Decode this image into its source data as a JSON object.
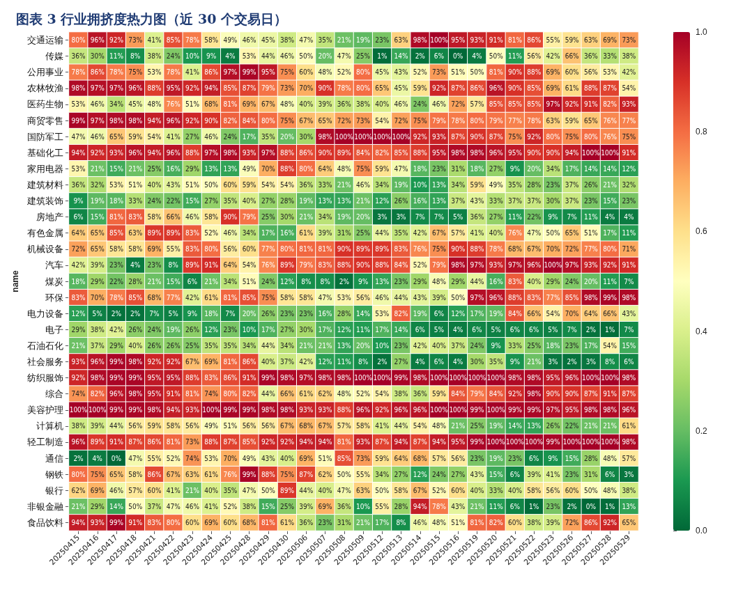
{
  "chart_data": {
    "type": "heatmap",
    "title": "图表 3 行业拥挤度热力图（近 30 个交易日）",
    "ylabel": "name",
    "categories": [
      "20250415",
      "20250416",
      "20250417",
      "20250418",
      "20250421",
      "20250422",
      "20250423",
      "20250424",
      "20250425",
      "20250428",
      "20250429",
      "20250430",
      "20250506",
      "20250507",
      "20250508",
      "20250509",
      "20250512",
      "20250513",
      "20250514",
      "20250515",
      "20250516",
      "20250519",
      "20250520",
      "20250521",
      "20250522",
      "20250523",
      "20250526",
      "20250527",
      "20250528",
      "20250529"
    ],
    "y_categories": [
      "交通运输",
      "传媒",
      "公用事业",
      "农林牧渔",
      "医药生物",
      "商贸零售",
      "国防军工",
      "基础化工",
      "家用电器",
      "建筑材料",
      "建筑装饰",
      "房地产",
      "有色金属",
      "机械设备",
      "汽车",
      "煤炭",
      "环保",
      "电力设备",
      "电子",
      "石油石化",
      "社会服务",
      "纺织服饰",
      "综合",
      "美容护理",
      "计算机",
      "轻工制造",
      "通信",
      "钢铁",
      "银行",
      "非银金融",
      "食品饮料"
    ],
    "cells": [
      [
        0.8,
        0.96,
        0.92,
        0.73,
        0.41,
        0.85,
        0.78,
        0.58,
        0.49,
        0.46,
        0.45,
        0.38,
        0.47,
        0.35,
        0.21,
        0.19,
        0.23,
        0.63,
        0.98,
        1.0,
        0.95,
        0.93,
        0.91,
        0.81,
        0.86,
        0.55,
        0.59,
        0.63,
        0.69,
        0.73
      ],
      [
        0.36,
        0.3,
        0.11,
        0.08,
        0.38,
        0.24,
        0.1,
        0.09,
        0.04,
        0.53,
        0.44,
        0.46,
        0.5,
        0.2,
        0.47,
        0.25,
        0.01,
        0.14,
        0.02,
        0.06,
        0.0,
        0.04,
        0.5,
        0.11,
        0.56,
        0.42,
        0.66,
        0.36,
        0.33,
        0.38
      ],
      [
        0.78,
        0.86,
        0.78,
        0.75,
        0.53,
        0.78,
        0.41,
        0.86,
        0.97,
        0.99,
        0.95,
        0.75,
        0.6,
        0.48,
        0.52,
        0.8,
        0.45,
        0.43,
        0.52,
        0.73,
        0.51,
        0.5,
        0.81,
        0.9,
        0.88,
        0.69,
        0.6,
        0.56,
        0.53,
        0.42
      ],
      [
        0.98,
        0.97,
        0.97,
        0.96,
        0.88,
        0.95,
        0.92,
        0.94,
        0.85,
        0.87,
        0.79,
        0.73,
        0.7,
        0.9,
        0.78,
        0.8,
        0.65,
        0.45,
        0.59,
        0.92,
        0.87,
        0.86,
        0.96,
        0.9,
        0.85,
        0.69,
        0.61,
        0.88,
        0.87,
        0.54
      ],
      [
        0.53,
        0.46,
        0.34,
        0.45,
        0.48,
        0.76,
        0.51,
        0.68,
        0.81,
        0.69,
        0.67,
        0.48,
        0.4,
        0.39,
        0.36,
        0.38,
        0.4,
        0.46,
        0.24,
        0.46,
        0.72,
        0.57,
        0.85,
        0.85,
        0.85,
        0.97,
        0.92,
        0.91,
        0.82,
        0.93
      ],
      [
        0.99,
        0.97,
        0.98,
        0.98,
        0.94,
        0.96,
        0.92,
        0.9,
        0.82,
        0.84,
        0.8,
        0.75,
        0.67,
        0.65,
        0.72,
        0.73,
        0.54,
        0.72,
        0.75,
        0.79,
        0.78,
        0.8,
        0.79,
        0.77,
        0.78,
        0.63,
        0.59,
        0.65,
        0.76,
        0.77
      ],
      [
        0.47,
        0.46,
        0.65,
        0.59,
        0.54,
        0.41,
        0.27,
        0.46,
        0.24,
        0.17,
        0.35,
        0.2,
        0.3,
        0.98,
        1.0,
        1.0,
        1.0,
        1.0,
        0.92,
        0.93,
        0.87,
        0.9,
        0.87,
        0.75,
        0.92,
        0.8,
        0.75,
        0.8,
        0.76,
        0.75
      ],
      [
        0.94,
        0.92,
        0.93,
        0.96,
        0.94,
        0.96,
        0.88,
        0.97,
        0.98,
        0.93,
        0.97,
        0.88,
        0.86,
        0.9,
        0.89,
        0.84,
        0.82,
        0.85,
        0.88,
        0.95,
        0.98,
        0.98,
        0.96,
        0.95,
        0.9,
        0.9,
        0.94,
        1.0,
        1.0,
        0.91
      ],
      [
        0.53,
        0.21,
        0.15,
        0.21,
        0.25,
        0.16,
        0.29,
        0.13,
        0.13,
        0.49,
        0.7,
        0.88,
        0.8,
        0.64,
        0.48,
        0.75,
        0.59,
        0.47,
        0.18,
        0.23,
        0.31,
        0.18,
        0.27,
        0.09,
        0.2,
        0.34,
        0.17,
        0.14,
        0.14,
        0.12
      ],
      [
        0.36,
        0.32,
        0.53,
        0.51,
        0.4,
        0.43,
        0.51,
        0.5,
        0.6,
        0.59,
        0.54,
        0.54,
        0.36,
        0.33,
        0.21,
        0.46,
        0.34,
        0.19,
        0.1,
        0.13,
        0.34,
        0.59,
        0.49,
        0.35,
        0.28,
        0.23,
        0.37,
        0.26,
        0.21,
        0.32
      ],
      [
        0.09,
        0.19,
        0.18,
        0.33,
        0.24,
        0.22,
        0.15,
        0.27,
        0.35,
        0.4,
        0.27,
        0.28,
        0.19,
        0.13,
        0.13,
        0.21,
        0.12,
        0.26,
        0.16,
        0.13,
        0.37,
        0.43,
        0.33,
        0.37,
        0.37,
        0.3,
        0.37,
        0.23,
        0.15,
        0.23
      ],
      [
        0.06,
        0.15,
        0.81,
        0.83,
        0.58,
        0.66,
        0.46,
        0.58,
        0.9,
        0.79,
        0.25,
        0.3,
        0.21,
        0.34,
        0.19,
        0.2,
        0.03,
        0.03,
        0.07,
        0.07,
        0.05,
        0.36,
        0.27,
        0.11,
        0.22,
        0.09,
        0.07,
        0.11,
        0.04,
        0.04
      ],
      [
        0.64,
        0.65,
        0.85,
        0.63,
        0.89,
        0.89,
        0.83,
        0.52,
        0.46,
        0.34,
        0.17,
        0.16,
        0.61,
        0.39,
        0.31,
        0.25,
        0.44,
        0.35,
        0.42,
        0.67,
        0.57,
        0.41,
        0.4,
        0.76,
        0.47,
        0.5,
        0.65,
        0.51,
        0.17,
        0.11
      ],
      [
        0.72,
        0.65,
        0.58,
        0.58,
        0.69,
        0.55,
        0.83,
        0.8,
        0.56,
        0.6,
        0.77,
        0.8,
        0.81,
        0.81,
        0.9,
        0.89,
        0.89,
        0.83,
        0.76,
        0.75,
        0.9,
        0.88,
        0.78,
        0.68,
        0.67,
        0.7,
        0.72,
        0.77,
        0.8,
        0.71
      ],
      [
        0.42,
        0.39,
        0.23,
        0.04,
        0.23,
        0.08,
        0.89,
        0.91,
        0.64,
        0.54,
        0.76,
        0.89,
        0.79,
        0.83,
        0.88,
        0.9,
        0.88,
        0.84,
        0.52,
        0.79,
        0.98,
        0.97,
        0.93,
        0.97,
        0.96,
        1.0,
        0.97,
        0.93,
        0.92,
        0.91
      ],
      [
        0.18,
        0.29,
        0.22,
        0.28,
        0.21,
        0.15,
        0.06,
        0.21,
        0.34,
        0.51,
        0.24,
        0.12,
        0.08,
        0.08,
        0.02,
        0.09,
        0.13,
        0.23,
        0.29,
        0.48,
        0.29,
        0.44,
        0.16,
        0.83,
        0.4,
        0.29,
        0.24,
        0.2,
        0.11,
        0.07
      ],
      [
        0.83,
        0.7,
        0.78,
        0.85,
        0.68,
        0.77,
        0.42,
        0.61,
        0.81,
        0.85,
        0.75,
        0.58,
        0.58,
        0.47,
        0.53,
        0.56,
        0.46,
        0.44,
        0.43,
        0.39,
        0.5,
        0.97,
        0.96,
        0.88,
        0.83,
        0.77,
        0.85,
        0.98,
        0.99,
        0.98
      ],
      [
        0.12,
        0.05,
        0.02,
        0.02,
        0.07,
        0.05,
        0.09,
        0.18,
        0.07,
        0.2,
        0.26,
        0.23,
        0.23,
        0.16,
        0.28,
        0.14,
        0.53,
        0.82,
        0.19,
        0.06,
        0.12,
        0.17,
        0.19,
        0.84,
        0.66,
        0.54,
        0.7,
        0.64,
        0.66,
        0.43
      ],
      [
        0.29,
        0.38,
        0.42,
        0.26,
        0.24,
        0.19,
        0.26,
        0.12,
        0.23,
        0.1,
        0.17,
        0.27,
        0.3,
        0.17,
        0.12,
        0.11,
        0.17,
        0.14,
        0.06,
        0.05,
        0.04,
        0.06,
        0.05,
        0.06,
        0.06,
        0.05,
        0.07,
        0.02,
        0.01,
        0.07
      ],
      [
        0.21,
        0.37,
        0.29,
        0.4,
        0.26,
        0.26,
        0.25,
        0.35,
        0.35,
        0.34,
        0.44,
        0.34,
        0.21,
        0.21,
        0.13,
        0.2,
        0.1,
        0.23,
        0.42,
        0.4,
        0.37,
        0.24,
        0.09,
        0.33,
        0.25,
        0.18,
        0.23,
        0.17,
        0.54,
        0.15
      ],
      [
        0.93,
        0.96,
        0.99,
        0.98,
        0.92,
        0.92,
        0.67,
        0.69,
        0.81,
        0.86,
        0.4,
        0.37,
        0.42,
        0.12,
        0.11,
        0.08,
        0.02,
        0.27,
        0.04,
        0.06,
        0.04,
        0.3,
        0.35,
        0.09,
        0.21,
        0.03,
        0.02,
        0.03,
        0.08,
        0.06
      ],
      [
        0.92,
        0.98,
        0.99,
        0.99,
        0.95,
        0.95,
        0.88,
        0.83,
        0.86,
        0.91,
        0.99,
        0.98,
        0.97,
        0.98,
        0.98,
        1.0,
        1.0,
        0.99,
        0.98,
        1.0,
        1.0,
        1.0,
        1.0,
        0.98,
        0.98,
        0.95,
        0.96,
        1.0,
        1.0,
        0.98
      ],
      [
        0.74,
        0.82,
        0.96,
        0.98,
        0.95,
        0.91,
        0.81,
        0.74,
        0.8,
        0.82,
        0.44,
        0.66,
        0.61,
        0.62,
        0.48,
        0.52,
        0.54,
        0.38,
        0.36,
        0.59,
        0.84,
        0.79,
        0.84,
        0.92,
        0.98,
        0.9,
        0.9,
        0.87,
        0.91,
        0.87
      ],
      [
        1.0,
        1.0,
        0.99,
        0.99,
        0.98,
        0.94,
        0.93,
        1.0,
        0.99,
        0.99,
        0.98,
        0.98,
        0.93,
        0.93,
        0.88,
        0.96,
        0.92,
        0.96,
        0.96,
        1.0,
        1.0,
        0.99,
        1.0,
        0.99,
        0.99,
        0.97,
        0.95,
        0.98,
        0.98,
        0.96
      ],
      [
        0.38,
        0.39,
        0.44,
        0.56,
        0.59,
        0.58,
        0.56,
        0.49,
        0.51,
        0.56,
        0.56,
        0.67,
        0.68,
        0.67,
        0.57,
        0.58,
        0.41,
        0.44,
        0.54,
        0.48,
        0.21,
        0.25,
        0.19,
        0.14,
        0.13,
        0.26,
        0.22,
        0.21,
        0.21,
        0.61
      ],
      [
        0.96,
        0.89,
        0.91,
        0.87,
        0.86,
        0.81,
        0.73,
        0.88,
        0.87,
        0.85,
        0.92,
        0.92,
        0.94,
        0.94,
        0.81,
        0.93,
        0.87,
        0.94,
        0.87,
        0.94,
        0.95,
        0.99,
        1.0,
        1.0,
        1.0,
        0.99,
        1.0,
        1.0,
        1.0,
        0.98
      ],
      [
        0.02,
        0.04,
        0.0,
        0.47,
        0.55,
        0.52,
        0.74,
        0.53,
        0.7,
        0.49,
        0.43,
        0.4,
        0.69,
        0.51,
        0.85,
        0.73,
        0.59,
        0.64,
        0.68,
        0.57,
        0.56,
        0.23,
        0.19,
        0.23,
        0.06,
        0.09,
        0.15,
        0.28,
        0.48,
        0.57
      ],
      [
        0.8,
        0.75,
        0.65,
        0.58,
        0.86,
        0.67,
        0.63,
        0.61,
        0.76,
        0.99,
        0.88,
        0.75,
        0.87,
        0.62,
        0.5,
        0.55,
        0.34,
        0.27,
        0.12,
        0.24,
        0.27,
        0.43,
        0.15,
        0.06,
        0.39,
        0.41,
        0.23,
        0.31,
        0.06,
        0.03
      ],
      [
        0.62,
        0.69,
        0.46,
        0.57,
        0.6,
        0.41,
        0.21,
        0.4,
        0.35,
        0.47,
        0.5,
        0.89,
        0.44,
        0.4,
        0.47,
        0.63,
        0.5,
        0.58,
        0.67,
        0.52,
        0.6,
        0.4,
        0.33,
        0.4,
        0.58,
        0.56,
        0.6,
        0.5,
        0.48,
        0.38
      ],
      [
        0.21,
        0.29,
        0.14,
        0.5,
        0.37,
        0.47,
        0.46,
        0.41,
        0.52,
        0.38,
        0.15,
        0.25,
        0.39,
        0.69,
        0.36,
        0.1,
        0.55,
        0.28,
        0.94,
        0.78,
        0.43,
        0.21,
        0.11,
        0.06,
        0.01,
        0.23,
        0.02,
        0.0,
        0.01,
        0.13
      ],
      [
        0.94,
        0.93,
        0.99,
        0.91,
        0.83,
        0.8,
        0.6,
        0.69,
        0.6,
        0.68,
        0.81,
        0.61,
        0.36,
        0.23,
        0.31,
        0.21,
        0.17,
        0.08,
        0.46,
        0.48,
        0.51,
        0.81,
        0.82,
        0.6,
        0.38,
        0.39,
        0.72,
        0.86,
        0.92,
        0.65
      ]
    ],
    "cell_labels": [
      [
        "80%",
        "96%",
        "92%",
        "73%",
        "41%",
        "85%",
        "78%",
        "58%",
        "49%",
        "46%",
        "45%",
        "38%",
        "47%",
        "35%",
        "21%",
        "19%",
        "23%",
        "63%",
        "98%",
        "100%",
        "95%",
        "93%",
        "91%",
        "81%",
        "86%",
        "55%",
        "59%",
        "63%",
        "69%",
        "73%"
      ],
      [
        "36%",
        "30%",
        "11%",
        "8%",
        "38%",
        "24%",
        "10%",
        "9%",
        "4%",
        "53%",
        "44%",
        "46%",
        "50%",
        "20%",
        "47%",
        "25%",
        "1%",
        "14%",
        "2%",
        "6%",
        "0%",
        "4%",
        "50%",
        "11%",
        "56%",
        "42%",
        "66%",
        "36%",
        "33%",
        "38%"
      ],
      [
        "78%",
        "86%",
        "78%",
        "75%",
        "53%",
        "78%",
        "41%",
        "86%",
        "97%",
        "99%",
        "95%",
        "75%",
        "60%",
        "48%",
        "52%",
        "80%",
        "45%",
        "43%",
        "52%",
        "73%",
        "51%",
        "50%",
        "81%",
        "90%",
        "88%",
        "69%",
        "60%",
        "56%",
        "53%",
        "42%"
      ],
      [
        "98%",
        "97%",
        "97%",
        "96%",
        "88%",
        "95%",
        "92%",
        "94%",
        "85%",
        "87%",
        "79%",
        "73%",
        "70%",
        "90%",
        "78%",
        "80%",
        "65%",
        "45%",
        "59%",
        "92%",
        "87%",
        "86%",
        "96%",
        "90%",
        "85%",
        "69%",
        "61%",
        "88%",
        "87%",
        "54%"
      ],
      [
        "53%",
        "46%",
        "34%",
        "45%",
        "48%",
        "76%",
        "51%",
        "68%",
        "81%",
        "69%",
        "67%",
        "48%",
        "40%",
        "39%",
        "36%",
        "38%",
        "40%",
        "46%",
        "24%",
        "46%",
        "72%",
        "57%",
        "85%",
        "85%",
        "85%",
        "97%",
        "92%",
        "91%",
        "82%",
        "93%"
      ],
      [
        "99%",
        "97%",
        "98%",
        "98%",
        "94%",
        "96%",
        "92%",
        "90%",
        "82%",
        "84%",
        "80%",
        "75%",
        "67%",
        "65%",
        "72%",
        "73%",
        "54%",
        "72%",
        "75%",
        "79%",
        "78%",
        "80%",
        "79%",
        "77%",
        "78%",
        "63%",
        "59%",
        "65%",
        "76%",
        "77%"
      ],
      [
        "47%",
        "46%",
        "65%",
        "59%",
        "54%",
        "41%",
        "27%",
        "46%",
        "24%",
        "17%",
        "35%",
        "20%",
        "30%",
        "98%",
        "100%",
        "100%",
        "100%",
        "100%",
        "92%",
        "93%",
        "87%",
        "90%",
        "87%",
        "75%",
        "92%",
        "80%",
        "75%",
        "80%",
        "76%",
        "75%"
      ],
      [
        "94%",
        "92%",
        "93%",
        "96%",
        "94%",
        "96%",
        "88%",
        "97%",
        "98%",
        "93%",
        "97%",
        "88%",
        "86%",
        "90%",
        "89%",
        "84%",
        "82%",
        "85%",
        "88%",
        "95%",
        "98%",
        "98%",
        "96%",
        "95%",
        "90%",
        "90%",
        "94%",
        "100%",
        "100%",
        "91%"
      ],
      [
        "53%",
        "21%",
        "15%",
        "21%",
        "25%",
        "16%",
        "29%",
        "13%",
        "13%",
        "49%",
        "70%",
        "88%",
        "80%",
        "64%",
        "48%",
        "75%",
        "59%",
        "47%",
        "18%",
        "23%",
        "31%",
        "18%",
        "27%",
        "9%",
        "20%",
        "34%",
        "17%",
        "14%",
        "14%",
        "12%"
      ],
      [
        "36%",
        "32%",
        "53%",
        "51%",
        "40%",
        "43%",
        "51%",
        "50%",
        "60%",
        "59%",
        "54%",
        "54%",
        "36%",
        "33%",
        "21%",
        "46%",
        "34%",
        "19%",
        "10%",
        "13%",
        "34%",
        "59%",
        "49%",
        "35%",
        "28%",
        "23%",
        "37%",
        "26%",
        "21%",
        "32%"
      ],
      [
        "9%",
        "19%",
        "18%",
        "33%",
        "24%",
        "22%",
        "15%",
        "27%",
        "35%",
        "40%",
        "27%",
        "28%",
        "19%",
        "13%",
        "13%",
        "21%",
        "12%",
        "26%",
        "16%",
        "13%",
        "37%",
        "43%",
        "33%",
        "37%",
        "37%",
        "30%",
        "37%",
        "23%",
        "15%",
        "23%"
      ],
      [
        "6%",
        "15%",
        "81%",
        "83%",
        "58%",
        "66%",
        "46%",
        "58%",
        "90%",
        "79%",
        "25%",
        "30%",
        "21%",
        "34%",
        "19%",
        "20%",
        "3%",
        "3%",
        "7%",
        "7%",
        "5%",
        "36%",
        "27%",
        "11%",
        "22%",
        "9%",
        "7%",
        "11%",
        "4%",
        "4%"
      ],
      [
        "64%",
        "65%",
        "85%",
        "63%",
        "89%",
        "89%",
        "83%",
        "52%",
        "46%",
        "34%",
        "17%",
        "16%",
        "61%",
        "39%",
        "31%",
        "25%",
        "44%",
        "35%",
        "42%",
        "67%",
        "57%",
        "41%",
        "40%",
        "76%",
        "47%",
        "50%",
        "65%",
        "51%",
        "17%",
        "11%"
      ],
      [
        "72%",
        "65%",
        "58%",
        "58%",
        "69%",
        "55%",
        "83%",
        "80%",
        "56%",
        "60%",
        "77%",
        "80%",
        "81%",
        "81%",
        "90%",
        "89%",
        "89%",
        "83%",
        "76%",
        "75%",
        "90%",
        "88%",
        "78%",
        "68%",
        "67%",
        "70%",
        "72%",
        "77%",
        "80%",
        "71%"
      ],
      [
        "42%",
        "39%",
        "23%",
        "4%",
        "23%",
        "8%",
        "89%",
        "91%",
        "64%",
        "54%",
        "76%",
        "89%",
        "79%",
        "83%",
        "88%",
        "90%",
        "88%",
        "84%",
        "52%",
        "79%",
        "98%",
        "97%",
        "93%",
        "97%",
        "96%",
        "100%",
        "97%",
        "93%",
        "92%",
        "91%"
      ],
      [
        "18%",
        "29%",
        "22%",
        "28%",
        "21%",
        "15%",
        "6%",
        "21%",
        "34%",
        "51%",
        "24%",
        "12%",
        "8%",
        "8%",
        "2%",
        "9%",
        "13%",
        "23%",
        "29%",
        "48%",
        "29%",
        "44%",
        "16%",
        "83%",
        "40%",
        "29%",
        "24%",
        "20%",
        "11%",
        "7%"
      ],
      [
        "83%",
        "70%",
        "78%",
        "85%",
        "68%",
        "77%",
        "42%",
        "61%",
        "81%",
        "85%",
        "75%",
        "58%",
        "58%",
        "47%",
        "53%",
        "56%",
        "46%",
        "44%",
        "43%",
        "39%",
        "50%",
        "97%",
        "96%",
        "88%",
        "83%",
        "77%",
        "85%",
        "98%",
        "99%",
        "98%"
      ],
      [
        "12%",
        "5%",
        "2%",
        "2%",
        "7%",
        "5%",
        "9%",
        "18%",
        "7%",
        "20%",
        "26%",
        "23%",
        "23%",
        "16%",
        "28%",
        "14%",
        "53%",
        "82%",
        "19%",
        "6%",
        "12%",
        "17%",
        "19%",
        "84%",
        "66%",
        "54%",
        "70%",
        "64%",
        "66%",
        "43%"
      ],
      [
        "29%",
        "38%",
        "42%",
        "26%",
        "24%",
        "19%",
        "26%",
        "12%",
        "23%",
        "10%",
        "17%",
        "27%",
        "30%",
        "17%",
        "12%",
        "11%",
        "17%",
        "14%",
        "6%",
        "5%",
        "4%",
        "6%",
        "5%",
        "6%",
        "6%",
        "5%",
        "7%",
        "2%",
        "1%",
        "7%"
      ],
      [
        "21%",
        "37%",
        "29%",
        "40%",
        "26%",
        "26%",
        "25%",
        "35%",
        "35%",
        "34%",
        "44%",
        "34%",
        "21%",
        "21%",
        "13%",
        "20%",
        "10%",
        "23%",
        "42%",
        "40%",
        "37%",
        "24%",
        "9%",
        "33%",
        "25%",
        "18%",
        "23%",
        "17%",
        "54%",
        "15%"
      ],
      [
        "93%",
        "96%",
        "99%",
        "98%",
        "92%",
        "92%",
        "67%",
        "69%",
        "81%",
        "86%",
        "40%",
        "37%",
        "42%",
        "12%",
        "11%",
        "8%",
        "2%",
        "27%",
        "4%",
        "6%",
        "4%",
        "30%",
        "35%",
        "9%",
        "21%",
        "3%",
        "2%",
        "3%",
        "8%",
        "6%"
      ],
      [
        "92%",
        "98%",
        "99%",
        "99%",
        "95%",
        "95%",
        "88%",
        "83%",
        "86%",
        "91%",
        "99%",
        "98%",
        "97%",
        "98%",
        "98%",
        "100%",
        "100%",
        "99%",
        "98%",
        "100%",
        "100%",
        "100%",
        "100%",
        "98%",
        "98%",
        "95%",
        "96%",
        "100%",
        "100%",
        "98%"
      ],
      [
        "74%",
        "82%",
        "96%",
        "98%",
        "95%",
        "91%",
        "81%",
        "74%",
        "80%",
        "82%",
        "44%",
        "66%",
        "61%",
        "62%",
        "48%",
        "52%",
        "54%",
        "38%",
        "36%",
        "59%",
        "84%",
        "79%",
        "84%",
        "92%",
        "98%",
        "90%",
        "90%",
        "87%",
        "91%",
        "87%"
      ],
      [
        "100%",
        "100%",
        "99%",
        "99%",
        "98%",
        "94%",
        "93%",
        "100%",
        "99%",
        "99%",
        "98%",
        "98%",
        "93%",
        "93%",
        "88%",
        "96%",
        "92%",
        "96%",
        "96%",
        "100%",
        "100%",
        "99%",
        "100%",
        "99%",
        "99%",
        "97%",
        "95%",
        "98%",
        "98%",
        "96%"
      ],
      [
        "38%",
        "39%",
        "44%",
        "56%",
        "59%",
        "58%",
        "56%",
        "49%",
        "51%",
        "56%",
        "56%",
        "67%",
        "68%",
        "67%",
        "57%",
        "58%",
        "41%",
        "44%",
        "54%",
        "48%",
        "21%",
        "25%",
        "19%",
        "14%",
        "13%",
        "26%",
        "22%",
        "21%",
        "21%",
        "61%"
      ],
      [
        "96%",
        "89%",
        "91%",
        "87%",
        "86%",
        "81%",
        "73%",
        "88%",
        "87%",
        "85%",
        "92%",
        "92%",
        "94%",
        "94%",
        "81%",
        "93%",
        "87%",
        "94%",
        "87%",
        "94%",
        "95%",
        "99%",
        "100%",
        "100%",
        "100%",
        "99%",
        "100%",
        "100%",
        "100%",
        "98%"
      ],
      [
        "2%",
        "4%",
        "0%",
        "47%",
        "55%",
        "52%",
        "74%",
        "53%",
        "70%",
        "49%",
        "43%",
        "40%",
        "69%",
        "51%",
        "85%",
        "73%",
        "59%",
        "64%",
        "68%",
        "57%",
        "56%",
        "23%",
        "19%",
        "23%",
        "6%",
        "9%",
        "15%",
        "28%",
        "48%",
        "57%"
      ],
      [
        "80%",
        "75%",
        "65%",
        "58%",
        "86%",
        "67%",
        "63%",
        "61%",
        "76%",
        "99%",
        "88%",
        "75%",
        "87%",
        "62%",
        "50%",
        "55%",
        "34%",
        "27%",
        "12%",
        "24%",
        "27%",
        "43%",
        "15%",
        "6%",
        "39%",
        "41%",
        "23%",
        "31%",
        "6%",
        "3%"
      ],
      [
        "62%",
        "69%",
        "46%",
        "57%",
        "60%",
        "41%",
        "21%",
        "40%",
        "35%",
        "47%",
        "50%",
        "89%",
        "44%",
        "40%",
        "47%",
        "63%",
        "50%",
        "58%",
        "67%",
        "52%",
        "60%",
        "40%",
        "33%",
        "40%",
        "58%",
        "56%",
        "60%",
        "50%",
        "48%",
        "38%"
      ],
      [
        "21%",
        "29%",
        "14%",
        "50%",
        "37%",
        "47%",
        "46%",
        "41%",
        "52%",
        "38%",
        "15%",
        "25%",
        "39%",
        "69%",
        "36%",
        "10%",
        "55%",
        "28%",
        "94%",
        "78%",
        "43%",
        "21%",
        "11%",
        "6%",
        "1%",
        "23%",
        "2%",
        "0%",
        "1%",
        "13%"
      ],
      [
        "94%",
        "93%",
        "99%",
        "91%",
        "83%",
        "80%",
        "60%",
        "69%",
        "60%",
        "68%",
        "81%",
        "61%",
        "36%",
        "23%",
        "31%",
        "21%",
        "17%",
        "8%",
        "46%",
        "48%",
        "51%",
        "81%",
        "82%",
        "60%",
        "38%",
        "39%",
        "72%",
        "86%",
        "92%",
        "65%"
      ]
    ],
    "clim": [
      0,
      1
    ],
    "cticks": [
      {
        "value": 0,
        "label": "0.0"
      },
      {
        "value": 0.2,
        "label": "0.2"
      },
      {
        "value": 0.4,
        "label": "0.4"
      },
      {
        "value": 0.6,
        "label": "0.6"
      },
      {
        "value": 0.8,
        "label": "0.8"
      },
      {
        "value": 1,
        "label": "1.0"
      }
    ]
  }
}
